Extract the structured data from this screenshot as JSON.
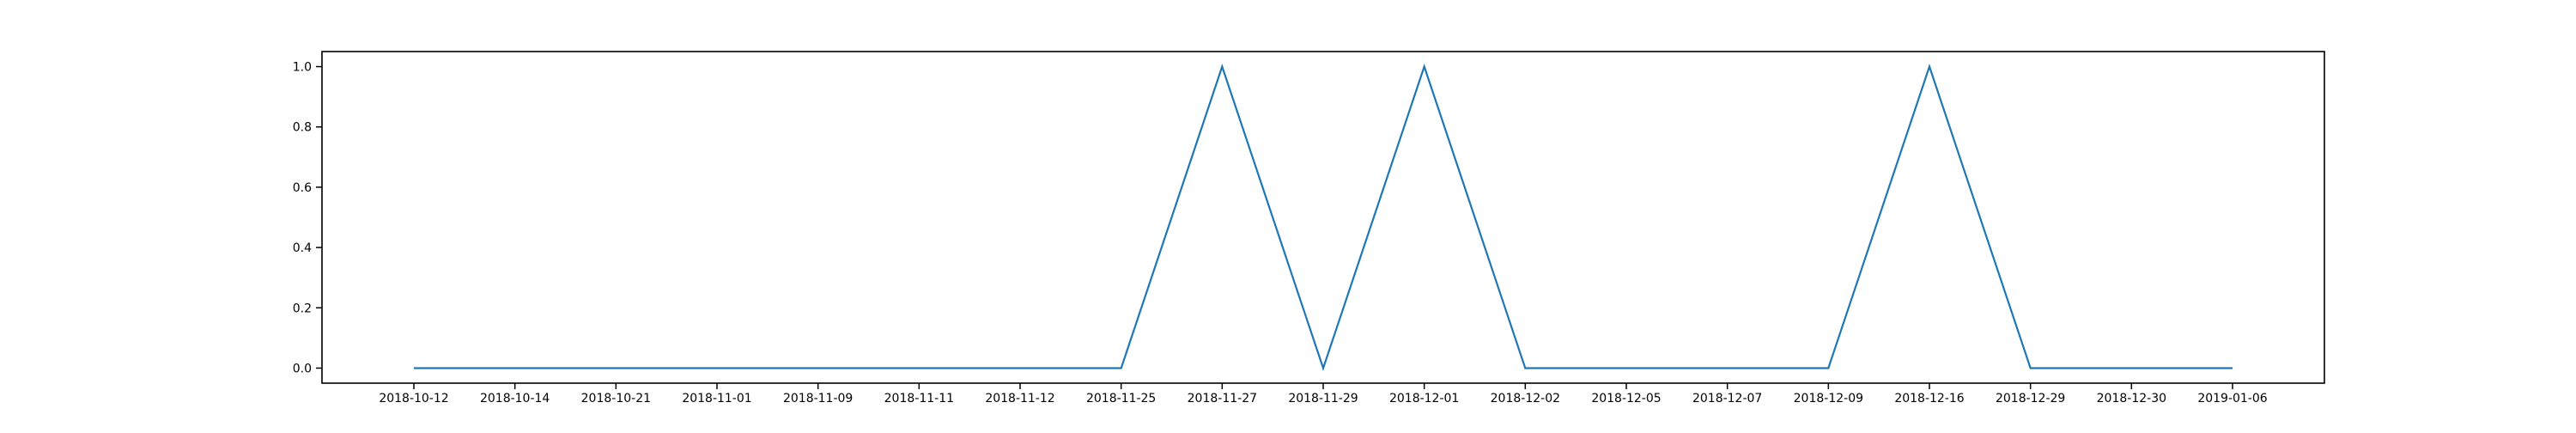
{
  "chart_data": {
    "type": "line",
    "title": "",
    "xlabel": "",
    "ylabel": "",
    "x": [
      "2018-10-12",
      "2018-10-14",
      "2018-10-21",
      "2018-11-01",
      "2018-11-09",
      "2018-11-11",
      "2018-11-12",
      "2018-11-25",
      "2018-11-27",
      "2018-11-29",
      "2018-12-01",
      "2018-12-02",
      "2018-12-05",
      "2018-12-07",
      "2018-12-09",
      "2018-12-16",
      "2018-12-29",
      "2018-12-30",
      "2019-01-06"
    ],
    "series": [
      {
        "name": "",
        "values": [
          0,
          0,
          0,
          0,
          0,
          0,
          0,
          0,
          1,
          0,
          1,
          0,
          0,
          0,
          0,
          1,
          0,
          0,
          0
        ],
        "color": "#1f77b4"
      }
    ],
    "ylim": [
      -0.05,
      1.05
    ],
    "yticks": [
      "0.0",
      "0.2",
      "0.4",
      "0.6",
      "0.8",
      "1.0"
    ],
    "grid": false,
    "legend": "none"
  }
}
